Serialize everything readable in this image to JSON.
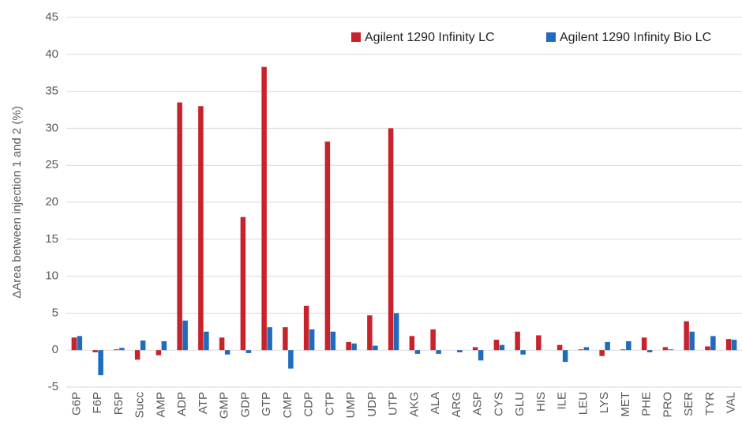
{
  "chart_data": {
    "type": "bar",
    "y_label": "ΔArea between injection 1 and 2 (%)",
    "categories": [
      "G6P",
      "F6P",
      "R5P",
      "Succ",
      "AMP",
      "ADP",
      "ATP",
      "GMP",
      "GDP",
      "GTP",
      "CMP",
      "CDP",
      "CTP",
      "UMP",
      "UDP",
      "UTP",
      "AKG",
      "ALA",
      "ARG",
      "ASP",
      "CYS",
      "GLU",
      "HIS",
      "ILE",
      "LEU",
      "LYS",
      "MET",
      "PHE",
      "PRO",
      "SER",
      "TYR",
      "VAL"
    ],
    "series": [
      {
        "name": "Agilent 1290 Infinity LC",
        "color": "#c8232c",
        "values": [
          1.7,
          -0.3,
          0.1,
          -1.3,
          -0.7,
          33.5,
          33.0,
          1.7,
          18.0,
          38.3,
          3.1,
          6.0,
          28.2,
          1.1,
          4.7,
          30.0,
          1.9,
          2.8,
          0.0,
          0.4,
          1.4,
          2.5,
          2.0,
          0.7,
          0.1,
          -0.8,
          0.1,
          1.7,
          0.4,
          3.9,
          0.5,
          1.5
        ]
      },
      {
        "name": "Agilent 1290 Infinity Bio LC",
        "color": "#1f6bbd",
        "values": [
          1.9,
          -3.4,
          0.3,
          1.3,
          1.2,
          4.0,
          2.5,
          -0.6,
          -0.4,
          3.1,
          -2.5,
          2.8,
          2.5,
          0.9,
          0.6,
          5.0,
          -0.5,
          -0.5,
          -0.3,
          -1.4,
          0.7,
          -0.6,
          0.0,
          -1.6,
          0.4,
          1.1,
          1.2,
          -0.3,
          0.1,
          2.5,
          1.9,
          1.4
        ]
      }
    ],
    "ylim": [
      -5,
      45
    ],
    "yticks": [
      -5,
      0,
      5,
      10,
      15,
      20,
      25,
      30,
      35,
      40,
      45
    ],
    "grid": true,
    "legend": "upper right"
  }
}
